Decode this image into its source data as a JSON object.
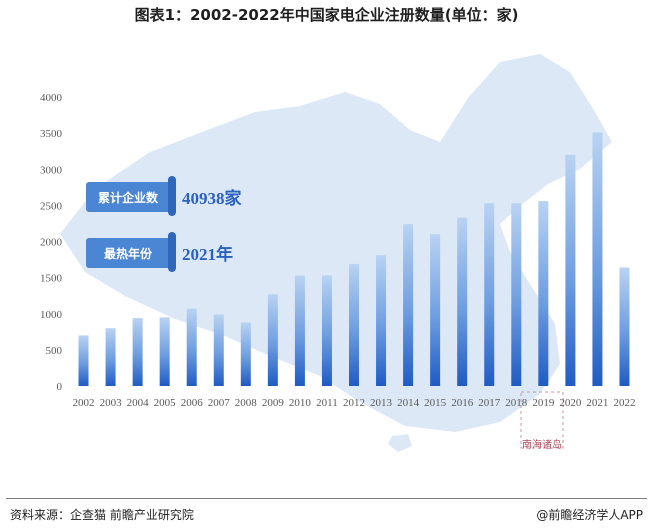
{
  "title": "图表1：2002-2022年中国家电企业注册数量(单位：家)",
  "stats": [
    {
      "label": "累计企业数",
      "value": "40938家"
    },
    {
      "label": "最热年份",
      "value": "2021年"
    }
  ],
  "map_label": "南海诸岛",
  "footer": {
    "source": "资料来源：企查猫 前瞻产业研究院",
    "brand": "@前瞻经济学人APP"
  },
  "colors": {
    "bar_top": "#b9d3f2",
    "bar_bottom": "#1f5bc4",
    "badge": "#4a86d4",
    "map": "#dde8f6"
  },
  "chart_data": {
    "type": "bar",
    "categories": [
      "2002",
      "2003",
      "2004",
      "2005",
      "2006",
      "2007",
      "2008",
      "2009",
      "2010",
      "2011",
      "2012",
      "2013",
      "2014",
      "2015",
      "2016",
      "2017",
      "2018",
      "2019",
      "2020",
      "2021",
      "2022"
    ],
    "values": [
      700,
      800,
      940,
      950,
      1070,
      990,
      880,
      1270,
      1530,
      1530,
      1690,
      1810,
      2240,
      2100,
      2330,
      2530,
      2530,
      2560,
      3200,
      3510,
      1640
    ],
    "yticks": [
      0,
      500,
      1000,
      1500,
      2000,
      2500,
      3000,
      3500,
      4000
    ],
    "ylim": [
      0,
      4000
    ],
    "grid": false
  }
}
